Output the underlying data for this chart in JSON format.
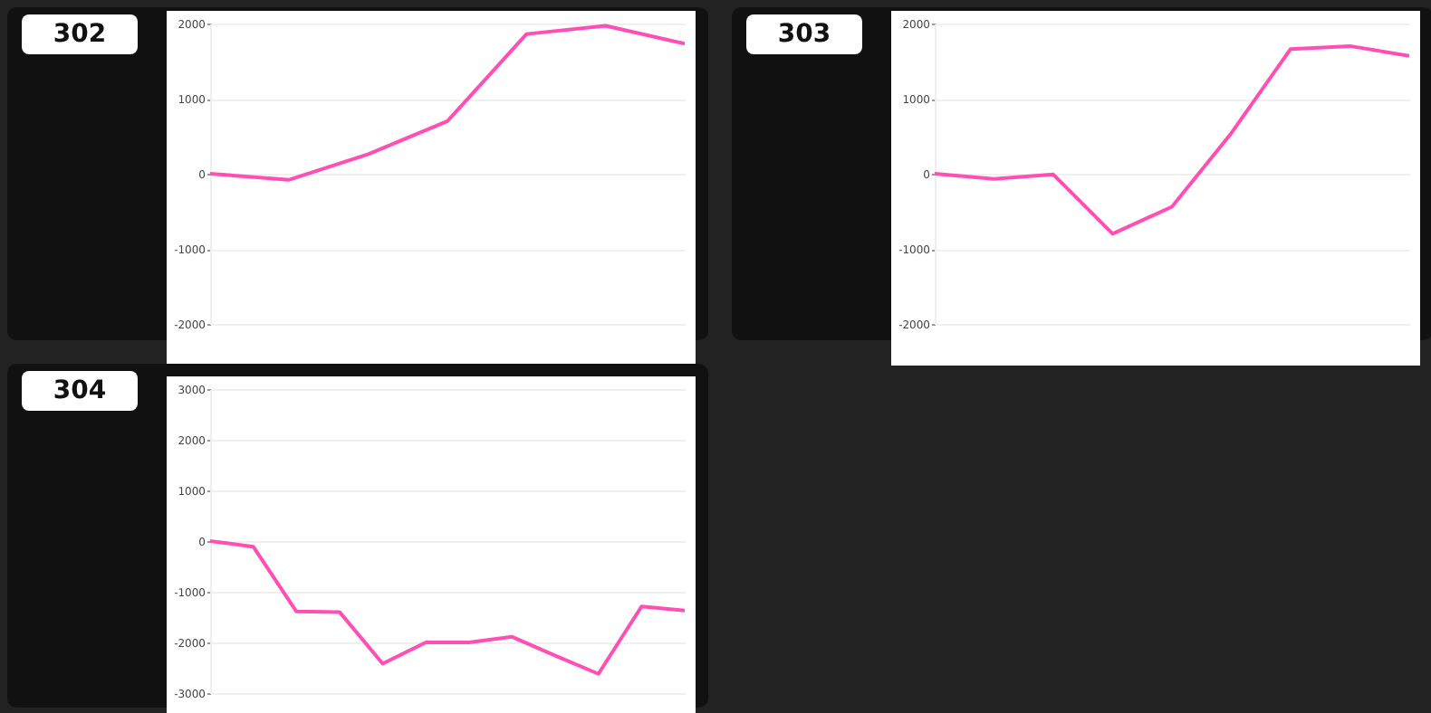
{
  "chart_data": [
    {
      "type": "line",
      "title": "302",
      "categories": [
        null,
        null,
        null,
        null,
        null,
        null,
        null
      ],
      "series": [
        {
          "color": "#ff4fb4",
          "values": [
            0,
            -80,
            260,
            700,
            1860,
            1970,
            1730
          ]
        }
      ],
      "ylim": [
        -2000,
        2000
      ],
      "yticks": [
        -2000,
        -1000,
        0,
        1000,
        2000
      ],
      "grid": "y"
    },
    {
      "type": "line",
      "title": "303",
      "categories": [
        null,
        null,
        null,
        null,
        null,
        null,
        null,
        null,
        null
      ],
      "series": [
        {
          "color": "#ff4fb4",
          "values": [
            0,
            -70,
            -10,
            -800,
            -440,
            540,
            1660,
            1700,
            1570
          ]
        }
      ],
      "ylim": [
        -2000,
        2000
      ],
      "yticks": [
        -2000,
        -1000,
        0,
        1000,
        2000
      ],
      "grid": "y"
    },
    {
      "type": "line",
      "title": "304",
      "categories": [
        null,
        null,
        null,
        null,
        null,
        null,
        null,
        null,
        null,
        null,
        null,
        null
      ],
      "series": [
        {
          "color": "#ff4fb4",
          "values": [
            0,
            -110,
            -1390,
            -1400,
            -2420,
            -2000,
            -2000,
            -1890,
            -2260,
            -2620,
            -1290,
            -1370
          ]
        }
      ],
      "ylim": [
        -3000,
        3000
      ],
      "yticks": [
        -3000,
        -2000,
        -1000,
        0,
        1000,
        2000,
        3000
      ],
      "grid": "y"
    }
  ]
}
